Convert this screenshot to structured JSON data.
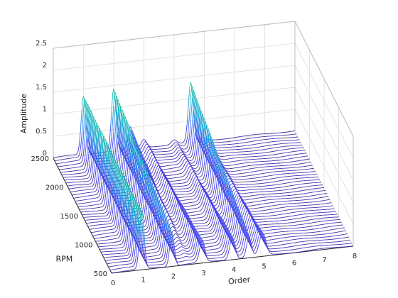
{
  "chart_data": {
    "type": "waterfall",
    "xlabel": "Order",
    "ylabel": "RPM",
    "zlabel": "Amplitude",
    "xlim": [
      0,
      8
    ],
    "ylim": [
      500,
      2500
    ],
    "zlim": [
      0,
      2.5
    ],
    "x_ticks": [
      "0",
      "1",
      "2",
      "3",
      "4",
      "5",
      "6",
      "7",
      "8"
    ],
    "y_ticks": [
      "500",
      "1000",
      "1500",
      "2000",
      "2500"
    ],
    "z_ticks": [
      "0",
      "0.5",
      "1",
      "1.5",
      "2",
      "2.5"
    ],
    "grid": true,
    "colormap": "parula",
    "colormap_colors": [
      "#3e26a8",
      "#4743f9",
      "#2d8aed",
      "#16b5ca",
      "#2cc79a",
      "#a6c13d",
      "#f6d32c",
      "#fad322"
    ],
    "rpm_range": [
      500,
      2500
    ],
    "rpm_count": 41,
    "peaks": [
      {
        "order": 1.0,
        "amp_at_500": 1.32,
        "amp_at_2500": 1.32,
        "width": 0.075
      },
      {
        "order": 2.0,
        "amp_at_500": 0.75,
        "amp_at_2500": 1.42,
        "width": 0.075
      },
      {
        "order": 2.55,
        "amp_at_500": 0.0,
        "amp_at_2500": 0.5,
        "width": 0.07
      },
      {
        "order": 3.0,
        "amp_at_500": 0.5,
        "amp_at_2500": 0.18,
        "width": 0.085
      },
      {
        "order": 4.0,
        "amp_at_500": 0.5,
        "amp_at_2500": 0.1,
        "width": 0.09
      },
      {
        "order": 4.55,
        "amp_at_500": 0.45,
        "amp_at_2500": 1.35,
        "width": 0.08
      },
      {
        "order": 5.0,
        "amp_at_500": 0.5,
        "amp_at_2500": 0.06,
        "width": 0.11
      }
    ]
  }
}
